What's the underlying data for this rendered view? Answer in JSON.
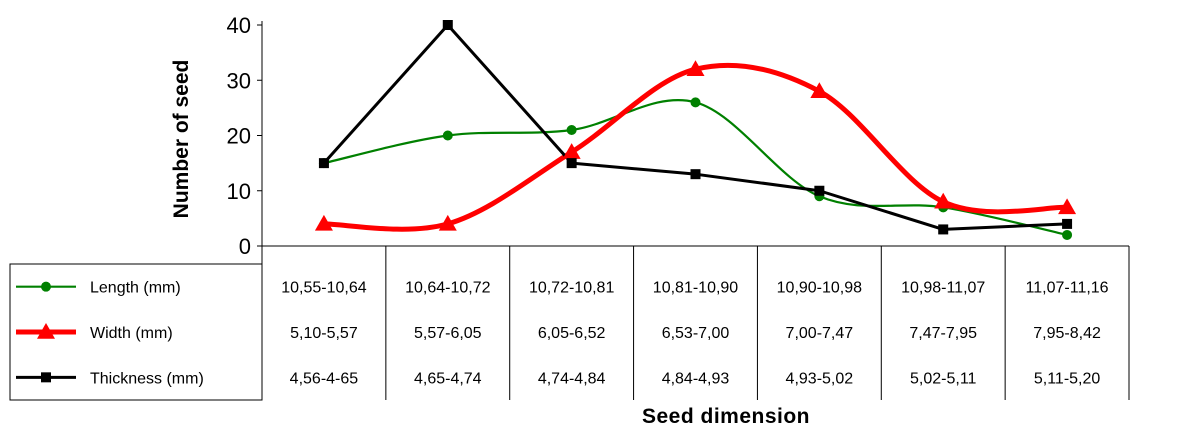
{
  "chart_data": {
    "type": "line",
    "title": "",
    "xlabel": "Seed dimension",
    "ylabel": "Number of seed",
    "ylim": [
      0,
      40
    ],
    "yticks": [
      "0",
      "10",
      "20",
      "30",
      "40"
    ],
    "grid": false,
    "legend": "table-left",
    "x": [
      1,
      2,
      3,
      4,
      5,
      6,
      7
    ],
    "series": [
      {
        "name": "Length (mm)",
        "color": "#008000",
        "marker": "circle",
        "smooth": true,
        "values": [
          15,
          20,
          21,
          26,
          9,
          7,
          2
        ],
        "categories": [
          "10,55-10,64",
          "10,64-10,72",
          "10,72-10,81",
          "10,81-10,90",
          "10,90-10,98",
          "10,98-11,07",
          "11,07-11,16"
        ]
      },
      {
        "name": "Width (mm)",
        "color": "#ff0000",
        "marker": "triangle",
        "smooth": true,
        "values": [
          4,
          4,
          17,
          32,
          28,
          8,
          7
        ],
        "categories": [
          "5,10-5,57",
          "5,57-6,05",
          "6,05-6,52",
          "6,53-7,00",
          "7,00-7,47",
          "7,47-7,95",
          "7,95-8,42"
        ]
      },
      {
        "name": "Thickness (mm)",
        "color": "#000000",
        "marker": "square",
        "smooth": false,
        "values": [
          15,
          40,
          15,
          13,
          10,
          3,
          4
        ],
        "categories": [
          "4,56-4-65",
          "4,65-4,74",
          "4,74-4,84",
          "4,84-4,93",
          "4,93-5,02",
          "5,02-5,11",
          "5,11-5,20"
        ]
      }
    ]
  }
}
